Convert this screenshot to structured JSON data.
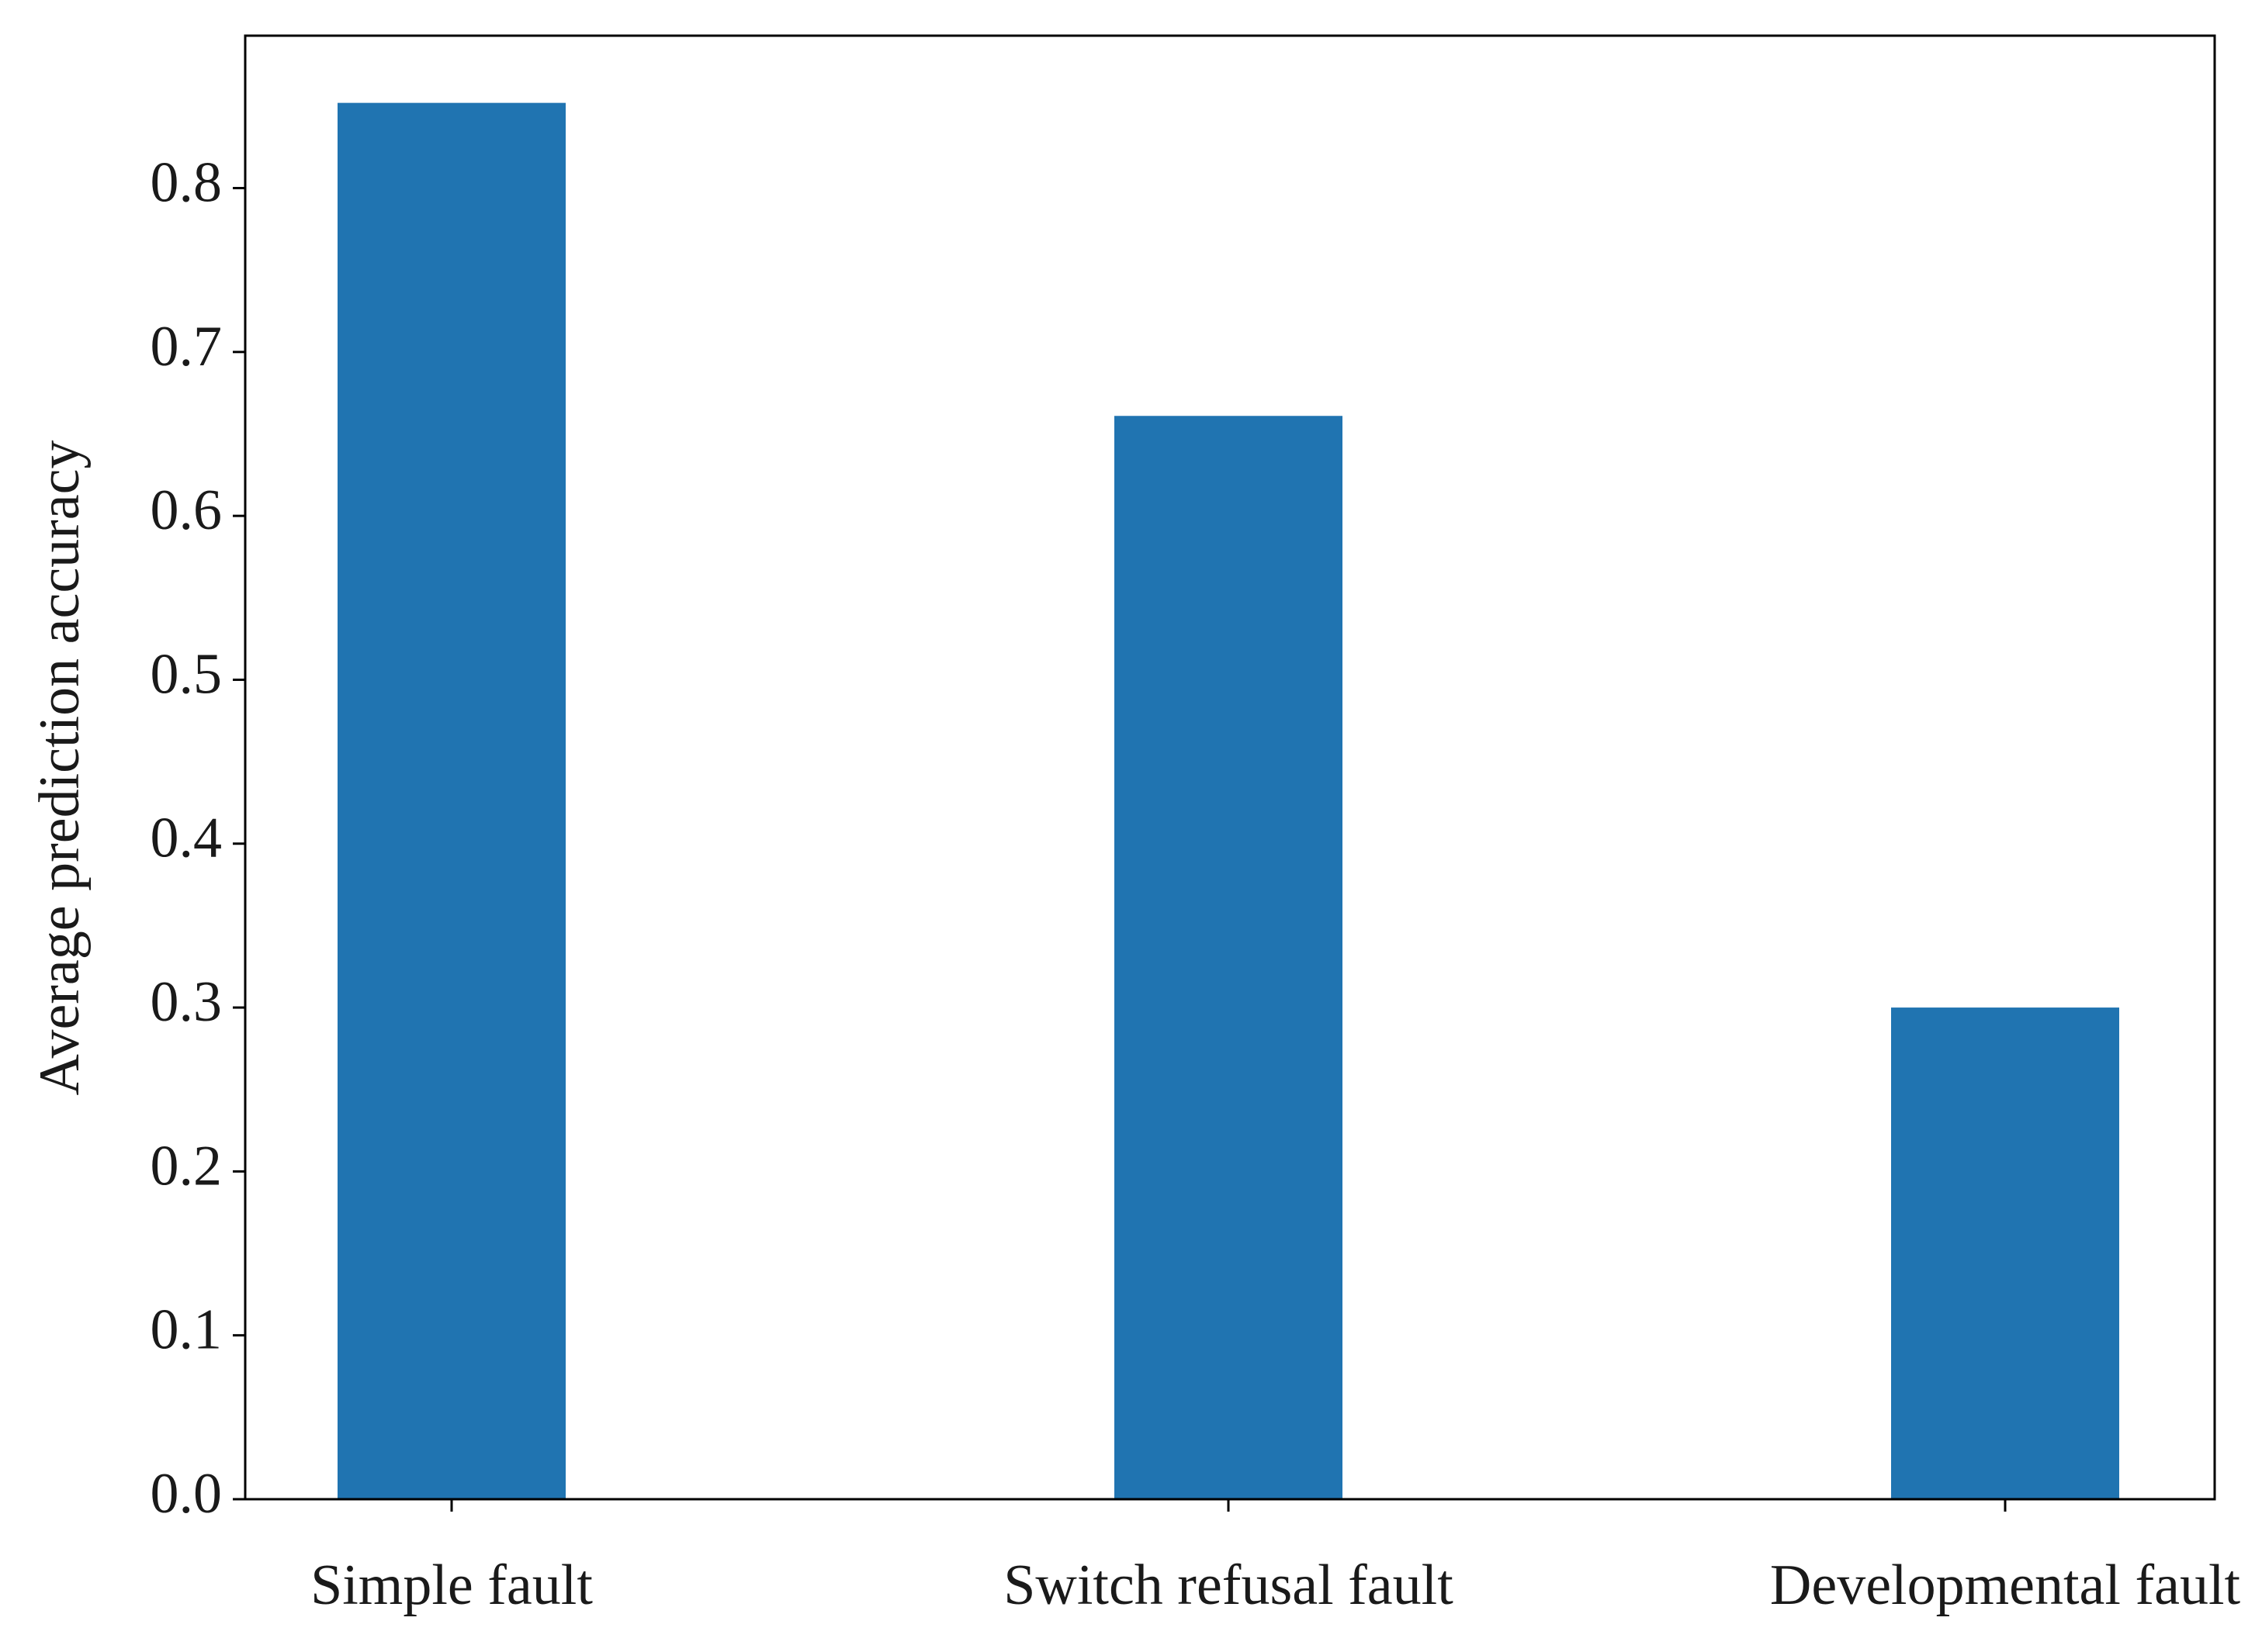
{
  "chart_data": {
    "type": "bar",
    "y_label": "Average prediction accuracy",
    "categories": [
      "Simple fault",
      "Switch refusal fault",
      "Developmental fault"
    ],
    "values": [
      0.852,
      0.661,
      0.3
    ],
    "color": "#2074b1",
    "ylim": [
      0,
      0.893
    ],
    "yticks": [
      {
        "value": 0,
        "label": "0.0"
      },
      0.1,
      0.2,
      0.3,
      0.4,
      0.5,
      0.6,
      0.7,
      0.8
    ],
    "grid": false
  }
}
